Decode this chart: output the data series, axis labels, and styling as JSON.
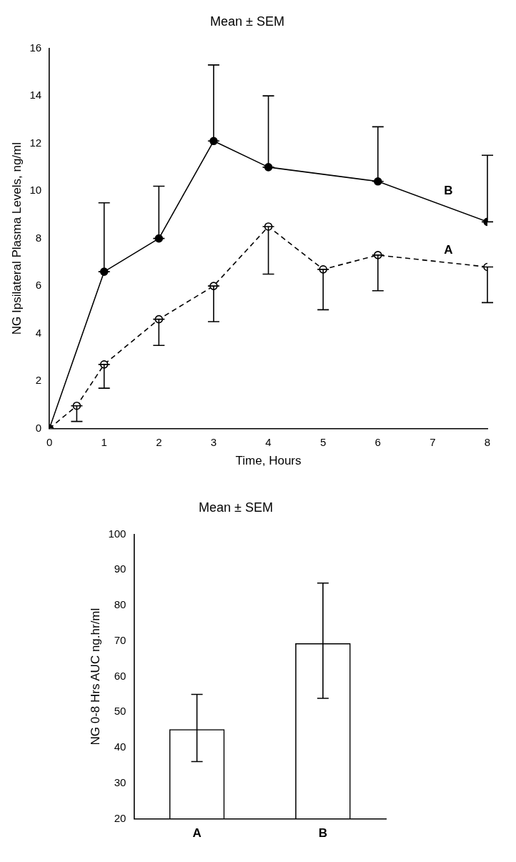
{
  "chart_data": [
    {
      "type": "line",
      "title": "Mean ± SEM",
      "xlabel": "Time, Hours",
      "ylabel": "NG Ipsilateral Plasma Levels, ng/ml",
      "xlim": [
        0,
        8
      ],
      "xticks": [
        0,
        1,
        2,
        3,
        4,
        5,
        6,
        7,
        8
      ],
      "ylim": [
        0,
        16
      ],
      "yticks": [
        0,
        2,
        4,
        6,
        8,
        10,
        12,
        14,
        16
      ],
      "grid": false,
      "legend": false,
      "marker": "circle",
      "series": [
        {
          "name": "B",
          "color": "#000000",
          "line_style": "solid",
          "x": [
            0,
            1,
            2,
            3,
            4,
            6,
            8
          ],
          "values": [
            0,
            6.6,
            8.0,
            12.1,
            11.0,
            10.4,
            8.7
          ],
          "errors": [
            null,
            [
              6.6,
              9.5
            ],
            [
              8.0,
              10.2
            ],
            [
              12.1,
              15.3
            ],
            [
              11.0,
              14.0
            ],
            [
              10.4,
              12.7
            ],
            [
              8.7,
              11.5
            ]
          ]
        },
        {
          "name": "A",
          "color": "#000000",
          "line_style": "dashed",
          "x": [
            0,
            0.5,
            1,
            2,
            3,
            4,
            5,
            6,
            8
          ],
          "values": [
            0,
            0.96,
            2.7,
            4.6,
            6.0,
            8.5,
            6.7,
            7.3,
            6.8
          ],
          "errors": [
            null,
            [
              0.3,
              0.96
            ],
            [
              1.7,
              2.7
            ],
            [
              3.5,
              4.6
            ],
            [
              4.5,
              6.0
            ],
            [
              6.5,
              8.5
            ],
            [
              5.0,
              6.7
            ],
            [
              5.8,
              7.3
            ],
            [
              5.3,
              6.8
            ]
          ]
        }
      ]
    },
    {
      "type": "bar",
      "title": "Mean ± SEM",
      "ylabel": "NG 0-8 Hrs AUC ng.hr/ml",
      "categories": [
        "A",
        "B"
      ],
      "ylim": [
        20,
        100
      ],
      "yticks": [
        20,
        30,
        40,
        50,
        60,
        70,
        80,
        90,
        100
      ],
      "grid": false,
      "legend": false,
      "series": [
        {
          "color": "#000000",
          "values": [
            45.2,
            69.4
          ],
          "errors": [
            [
              36.1,
              55.0
            ],
            [
              53.9,
              86.3
            ]
          ]
        }
      ]
    }
  ]
}
